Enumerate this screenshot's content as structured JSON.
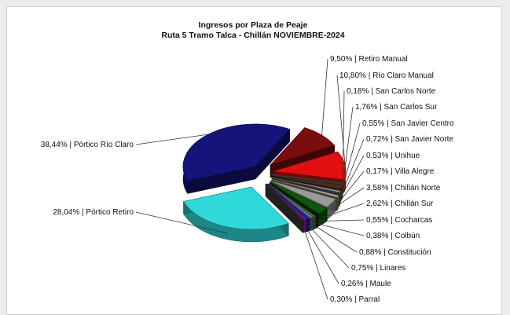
{
  "chart_data": {
    "type": "pie",
    "title": "Ingresos por Plaza de Peaje",
    "subtitle": "Ruta 5 Tramo Talca - Chillán NOVIEMBRE-2024",
    "slices": [
      {
        "label": "Pórtico Río Claro",
        "value": 38.44,
        "text": "38,44% | Pórtico Río Claro",
        "color": "#14147a"
      },
      {
        "label": "Retiro Manual",
        "value": 9.5,
        "text": "9,50% | Retiro Manual",
        "color": "#7a0d0d"
      },
      {
        "label": "Río Claro Manual",
        "value": 10.8,
        "text": "10,80% | Río Claro Manual",
        "color": "#e01010"
      },
      {
        "label": "San Carlos Norte",
        "value": 0.18,
        "text": "0,18% | San Carlos Norte",
        "color": "#6b6b6b"
      },
      {
        "label": "San Carlos Sur",
        "value": 1.76,
        "text": "1,76% | San Carlos Sur",
        "color": "#4d2a1a"
      },
      {
        "label": "San Javier Centro",
        "value": 0.55,
        "text": "0,55% | San Javier Centro",
        "color": "#9aa0a8"
      },
      {
        "label": "San Javier Norte",
        "value": 0.72,
        "text": "0,72% | San Javier Norte",
        "color": "#3a3a3a"
      },
      {
        "label": "Unihue",
        "value": 0.53,
        "text": "0,53% | Unihue",
        "color": "#c8c8c8"
      },
      {
        "label": "Villa Alegre",
        "value": 0.17,
        "text": "0,17% | Villa Alegre",
        "color": "#808040"
      },
      {
        "label": "Chillán Norte",
        "value": 3.58,
        "text": "3,58% | Chillán Norte",
        "color": "#9a9a9a"
      },
      {
        "label": "Chillán Sur",
        "value": 2.62,
        "text": "2,62% | Chillán Sur",
        "color": "#0a5a0a"
      },
      {
        "label": "Cocharcas",
        "value": 0.55,
        "text": "0,55% | Cocharcas",
        "color": "#1a1a1a"
      },
      {
        "label": "Colbún",
        "value": 0.38,
        "text": "0,38% | Colbún",
        "color": "#2ba02b"
      },
      {
        "label": "Constitución",
        "value": 0.88,
        "text": "0,88% | Constitución",
        "color": "#707070"
      },
      {
        "label": "Linares",
        "value": 0.75,
        "text": "0,75% | Linares",
        "color": "#2020c0"
      },
      {
        "label": "Maule",
        "value": 0.26,
        "text": "0,26% | Maule",
        "color": "#c020c0"
      },
      {
        "label": "Parral",
        "value": 0.3,
        "text": "0,30% | Parral",
        "color": "#404040"
      },
      {
        "label": "Pórtico Retiro",
        "value": 28.04,
        "text": "28,04% | Pórtico Retiro",
        "color": "#2fd9d9"
      }
    ],
    "legend": "none"
  }
}
